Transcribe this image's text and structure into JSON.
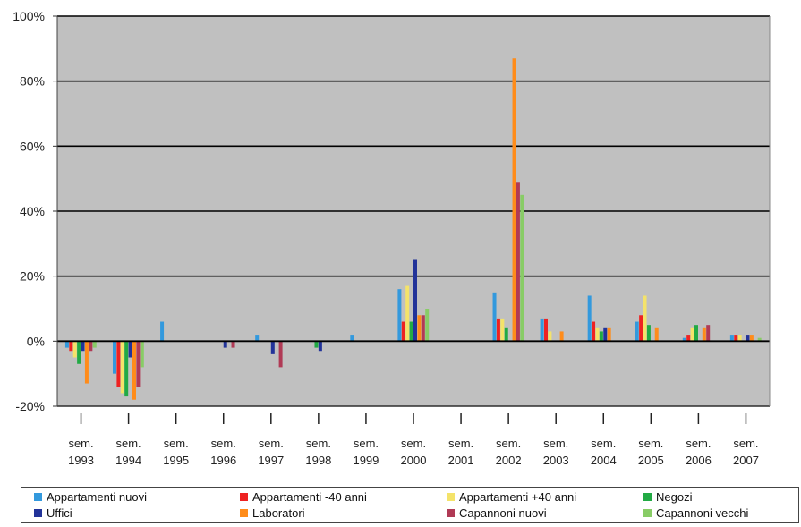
{
  "chart_data": {
    "type": "bar",
    "categories": [
      "sem. 1993",
      "sem. 1994",
      "sem. 1995",
      "sem. 1996",
      "sem. 1997",
      "sem. 1998",
      "sem. 1999",
      "sem. 2000",
      "sem. 2001",
      "sem. 2002",
      "sem. 2003",
      "sem. 2004",
      "sem. 2005",
      "sem. 2006",
      "sem. 2007"
    ],
    "category_lines": [
      [
        "sem.",
        "1993"
      ],
      [
        "sem.",
        "1994"
      ],
      [
        "sem.",
        "1995"
      ],
      [
        "sem.",
        "1996"
      ],
      [
        "sem.",
        "1997"
      ],
      [
        "sem.",
        "1998"
      ],
      [
        "sem.",
        "1999"
      ],
      [
        "sem.",
        "2000"
      ],
      [
        "sem.",
        "2001"
      ],
      [
        "sem.",
        "2002"
      ],
      [
        "sem.",
        "2003"
      ],
      [
        "sem.",
        "2004"
      ],
      [
        "sem.",
        "2005"
      ],
      [
        "sem.",
        "2006"
      ],
      [
        "sem.",
        "2007"
      ]
    ],
    "ylim": [
      -20,
      100
    ],
    "yticks": [
      -20,
      0,
      20,
      40,
      60,
      80,
      100
    ],
    "ytick_labels": [
      "-20%",
      "0%",
      "20%",
      "40%",
      "60%",
      "80%",
      "100%"
    ],
    "grid": true,
    "legend_position": "bottom",
    "plot_background": "#c0c0c0",
    "series": [
      {
        "name": "Appartamenti nuovi",
        "color": "#3399dd",
        "values": [
          -2,
          -10,
          6,
          0,
          2,
          0,
          2,
          16,
          0,
          15,
          7,
          14,
          6,
          1,
          2
        ]
      },
      {
        "name": "Appartamenti -40 anni",
        "color": "#ee2222",
        "values": [
          -3,
          -14,
          0,
          0,
          0,
          0,
          0,
          6,
          0,
          7,
          7,
          6,
          8,
          2,
          2
        ]
      },
      {
        "name": "Appartamenti +40 anni",
        "color": "#f4e36a",
        "values": [
          -5,
          -16,
          0,
          0,
          0,
          0,
          0,
          17,
          0,
          7,
          3,
          4,
          14,
          4,
          2
        ]
      },
      {
        "name": "Negozi",
        "color": "#22aa44",
        "values": [
          -7,
          -17,
          0,
          0,
          0,
          -2,
          0,
          6,
          0,
          4,
          0,
          3,
          5,
          5,
          0
        ]
      },
      {
        "name": "Uffici",
        "color": "#223399",
        "values": [
          -3,
          -5,
          0,
          -2,
          -4,
          -3,
          0,
          25,
          0,
          0,
          0,
          4,
          0,
          0,
          2
        ]
      },
      {
        "name": "Laboratori",
        "color": "#ff8c1a",
        "values": [
          -13,
          -18,
          0,
          0,
          0,
          0,
          0,
          8,
          0,
          87,
          3,
          4,
          4,
          4,
          2
        ]
      },
      {
        "name": "Capannoni nuovi",
        "color": "#b03a55",
        "values": [
          -3,
          -14,
          0,
          -2,
          -8,
          0,
          0,
          8,
          0,
          49,
          0,
          0,
          0,
          5,
          0
        ]
      },
      {
        "name": "Capannoni vecchi",
        "color": "#88cc66",
        "values": [
          -2,
          -8,
          0,
          0,
          0,
          0,
          0,
          10,
          0,
          45,
          0,
          0,
          0,
          0,
          1
        ]
      }
    ]
  }
}
